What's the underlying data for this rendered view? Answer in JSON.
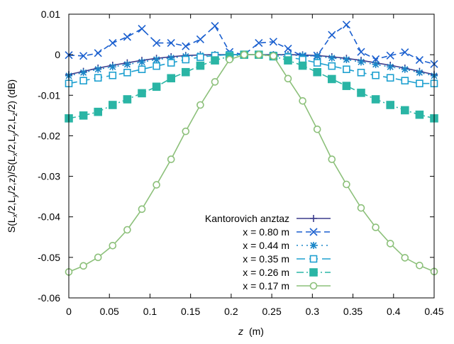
{
  "chart_data": {
    "type": "line",
    "xlabel_var": "z",
    "xlabel_unit": "(m)",
    "ylabel_parts": [
      "S(L",
      "x",
      "/2,L",
      "y",
      "/2,z)/S(L",
      "x",
      "/2,L",
      "y",
      "/2,L",
      "z",
      "/2) (dB)"
    ],
    "xlim": [
      0,
      0.45
    ],
    "ylim": [
      -0.06,
      0.01
    ],
    "xticks": [
      0,
      0.05,
      0.1,
      0.15,
      0.2,
      0.25,
      0.3,
      0.35,
      0.4,
      0.45
    ],
    "xtick_labels": [
      "0",
      "0.05",
      "0.1",
      "0.15",
      "0.2",
      "0.25",
      "0.3",
      "0.35",
      "0.4",
      "0.45"
    ],
    "yticks": [
      0.01,
      0,
      -0.01,
      -0.02,
      -0.03,
      -0.04,
      -0.05,
      -0.06
    ],
    "ytick_labels": [
      "0.01",
      "0",
      "-0.01",
      "-0.02",
      "-0.03",
      "-0.04",
      "-0.05",
      "-0.06"
    ],
    "grid": false,
    "legend_position": "bottom-center",
    "series": [
      {
        "name": "Kantorovich anztaz",
        "color": "#3c3c8c",
        "dash": "",
        "marker": "plus",
        "x": [
          0,
          0.018,
          0.036,
          0.054,
          0.072,
          0.09,
          0.108,
          0.126,
          0.144,
          0.162,
          0.18,
          0.198,
          0.216,
          0.234,
          0.252,
          0.27,
          0.288,
          0.306,
          0.324,
          0.342,
          0.36,
          0.378,
          0.396,
          0.414,
          0.432,
          0.45
        ],
        "y": [
          -0.0049,
          -0.0041,
          -0.0033,
          -0.0026,
          -0.002,
          -0.0014,
          -0.0009,
          -0.0005,
          -0.0002,
          -5e-05,
          0,
          0,
          0,
          0,
          0,
          0,
          -5e-05,
          -0.0002,
          -0.0005,
          -0.0009,
          -0.0014,
          -0.002,
          -0.0026,
          -0.0033,
          -0.0041,
          -0.0049
        ]
      },
      {
        "name": "x = 0.80 m",
        "color": "#1a5fcf",
        "dash": "8,5",
        "marker": "x",
        "x": [
          0,
          0.018,
          0.036,
          0.054,
          0.072,
          0.09,
          0.108,
          0.126,
          0.144,
          0.162,
          0.18,
          0.198,
          0.216,
          0.234,
          0.252,
          0.27,
          0.288,
          0.306,
          0.324,
          0.342,
          0.36,
          0.378,
          0.396,
          0.414,
          0.432,
          0.45
        ],
        "y": [
          -0.0001,
          -0.0003,
          0.0004,
          0.0029,
          0.0044,
          0.0064,
          0.0029,
          0.0029,
          0.0021,
          0.0038,
          0.0071,
          0.0007,
          0,
          0.0029,
          0.0032,
          0.0015,
          -0.0004,
          -0.0002,
          0.0049,
          0.0074,
          0.0007,
          -0.0011,
          -0.0002,
          0.0006,
          -0.0013,
          -0.0023
        ]
      },
      {
        "name": "x = 0.44 m",
        "color": "#1a86c8",
        "dash": "2,5",
        "marker": "star",
        "x": [
          0,
          0.018,
          0.036,
          0.054,
          0.072,
          0.09,
          0.108,
          0.126,
          0.144,
          0.162,
          0.18,
          0.198,
          0.216,
          0.234,
          0.252,
          0.27,
          0.288,
          0.306,
          0.324,
          0.342,
          0.36,
          0.378,
          0.396,
          0.414,
          0.432,
          0.45
        ],
        "y": [
          -0.0052,
          -0.0044,
          -0.0036,
          -0.003,
          -0.0024,
          -0.0018,
          -0.0012,
          -0.0008,
          -0.0004,
          -0.0002,
          -0.0001,
          0,
          0,
          0,
          0,
          -0.0001,
          -0.0002,
          -0.0004,
          -0.0008,
          -0.0012,
          -0.0018,
          -0.0024,
          -0.003,
          -0.0036,
          -0.0044,
          -0.0052
        ]
      },
      {
        "name": "x = 0.35 m",
        "color": "#1ea0d0",
        "dash": "12,6",
        "marker": "square",
        "x": [
          0,
          0.018,
          0.036,
          0.054,
          0.072,
          0.09,
          0.108,
          0.126,
          0.144,
          0.162,
          0.18,
          0.198,
          0.216,
          0.234,
          0.252,
          0.27,
          0.288,
          0.306,
          0.324,
          0.342,
          0.36,
          0.378,
          0.396,
          0.414,
          0.432,
          0.45
        ],
        "y": [
          -0.0071,
          -0.0064,
          -0.0057,
          -0.0051,
          -0.0044,
          -0.0036,
          -0.0028,
          -0.002,
          -0.0012,
          -0.0006,
          -0.0002,
          0,
          0,
          0,
          -0.0002,
          -0.0006,
          -0.0012,
          -0.002,
          -0.0028,
          -0.0036,
          -0.0044,
          -0.0051,
          -0.0057,
          -0.0064,
          -0.0071,
          -0.0071
        ]
      },
      {
        "name": "x = 0.26 m",
        "color": "#2ab5a5",
        "dash": "10,4,2,4",
        "marker": "filled-square",
        "x": [
          0,
          0.018,
          0.036,
          0.054,
          0.072,
          0.09,
          0.108,
          0.126,
          0.144,
          0.162,
          0.18,
          0.198,
          0.216,
          0.234,
          0.252,
          0.27,
          0.288,
          0.306,
          0.324,
          0.342,
          0.36,
          0.378,
          0.396,
          0.414,
          0.432,
          0.45
        ],
        "y": [
          -0.0157,
          -0.015,
          -0.0141,
          -0.0124,
          -0.011,
          -0.0095,
          -0.0079,
          -0.0058,
          -0.0043,
          -0.0027,
          -0.0014,
          -0.0004,
          0,
          0,
          -0.0004,
          -0.0014,
          -0.0027,
          -0.0043,
          -0.006,
          -0.0077,
          -0.0094,
          -0.011,
          -0.0124,
          -0.0137,
          -0.0148,
          -0.0157
        ]
      },
      {
        "name": "x = 0.17 m",
        "color": "#8cc07a",
        "dash": "",
        "marker": "circle",
        "x": [
          0,
          0.018,
          0.036,
          0.054,
          0.072,
          0.09,
          0.108,
          0.126,
          0.144,
          0.162,
          0.18,
          0.198,
          0.216,
          0.234,
          0.252,
          0.27,
          0.288,
          0.306,
          0.324,
          0.342,
          0.36,
          0.378,
          0.396,
          0.414,
          0.432,
          0.45
        ],
        "y": [
          -0.0536,
          -0.0521,
          -0.05,
          -0.0471,
          -0.0432,
          -0.0381,
          -0.0321,
          -0.0258,
          -0.0189,
          -0.0124,
          -0.0067,
          -0.0012,
          0,
          0,
          -0.0003,
          -0.0059,
          -0.0114,
          -0.0184,
          -0.0258,
          -0.032,
          -0.0378,
          -0.0426,
          -0.0466,
          -0.0501,
          -0.052,
          -0.0535
        ]
      }
    ]
  }
}
